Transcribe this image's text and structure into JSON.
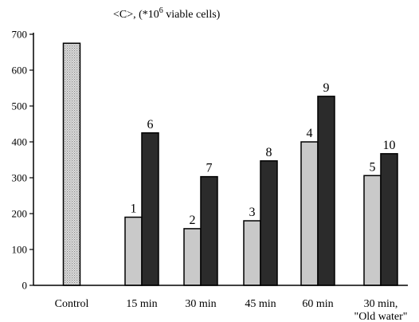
{
  "chart_data": {
    "type": "bar",
    "title": "",
    "ylabel_prefix": "<C>, (*10",
    "ylabel_exp": "6",
    "ylabel_suffix": " viable cells)",
    "xlabel": "",
    "ylim": [
      0,
      700
    ],
    "yticks": [
      0,
      100,
      200,
      300,
      400,
      500,
      600,
      700
    ],
    "grid": false,
    "legend": "none",
    "colors": {
      "control": "#c8c8c8",
      "light": "#c9c9c9",
      "dark": "#2b2b2b"
    },
    "groups": [
      {
        "category": [
          "Control"
        ],
        "bars": [
          {
            "label": "",
            "value": 675,
            "style": "control"
          }
        ]
      },
      {
        "category": [
          "15 min"
        ],
        "bars": [
          {
            "label": "1",
            "value": 190,
            "style": "light"
          },
          {
            "label": "6",
            "value": 425,
            "style": "dark"
          }
        ]
      },
      {
        "category": [
          "30 min"
        ],
        "bars": [
          {
            "label": "2",
            "value": 158,
            "style": "light"
          },
          {
            "label": "7",
            "value": 303,
            "style": "dark"
          }
        ]
      },
      {
        "category": [
          "45 min"
        ],
        "bars": [
          {
            "label": "3",
            "value": 180,
            "style": "light"
          },
          {
            "label": "8",
            "value": 347,
            "style": "dark"
          }
        ]
      },
      {
        "category": [
          "60 min"
        ],
        "bars": [
          {
            "label": "4",
            "value": 400,
            "style": "light"
          },
          {
            "label": "9",
            "value": 527,
            "style": "dark"
          }
        ]
      },
      {
        "category": [
          "30 min,",
          "\"Old water\""
        ],
        "bars": [
          {
            "label": "5",
            "value": 306,
            "style": "light"
          },
          {
            "label": "10",
            "value": 367,
            "style": "dark"
          }
        ]
      }
    ]
  }
}
